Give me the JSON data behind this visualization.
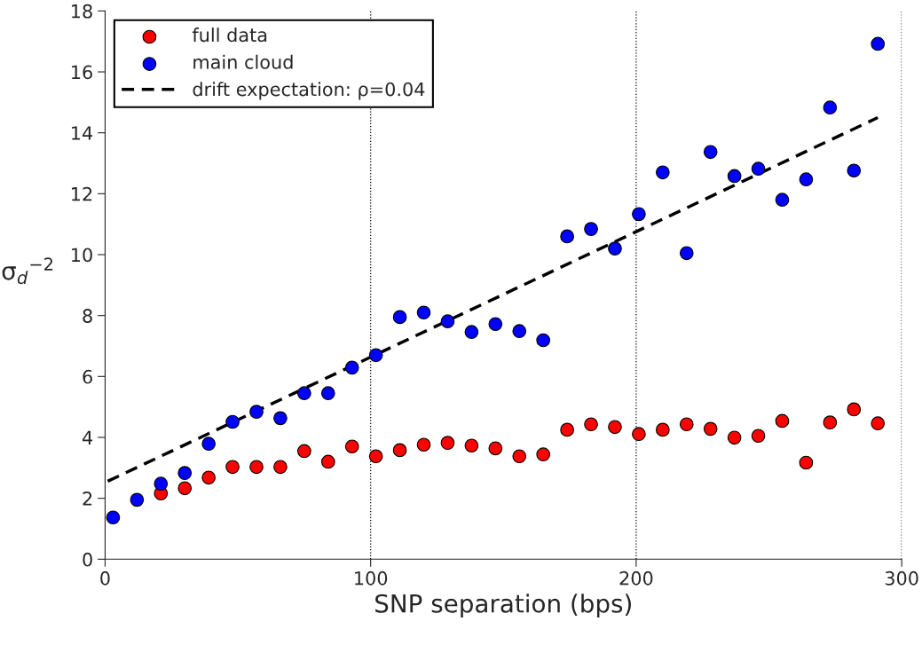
{
  "chart_data": {
    "type": "scatter",
    "xlabel": "SNP separation (bps)",
    "ylabel": "σ$_{d}$$^{−2}$",
    "xlim": [
      0,
      300
    ],
    "xticks": [
      0,
      100,
      200,
      300
    ],
    "ylim": [
      0,
      18
    ],
    "yticks": [
      0,
      2,
      4,
      6,
      8,
      10,
      12,
      14,
      16,
      18
    ],
    "grid": "x",
    "legend": "top left",
    "marker": "circle",
    "series": [
      {
        "name": "full data",
        "color": "#ff0000",
        "x": [
          21,
          30,
          39,
          48,
          57,
          66,
          75,
          84,
          93,
          102,
          111,
          120,
          129,
          138,
          147,
          156,
          165,
          174,
          183,
          192,
          201,
          210,
          219,
          228,
          237,
          246,
          255,
          264,
          273,
          282,
          291
        ],
        "values": [
          2.16,
          2.33,
          2.68,
          3.03,
          3.03,
          3.03,
          3.55,
          3.2,
          3.7,
          3.38,
          3.58,
          3.76,
          3.82,
          3.73,
          3.64,
          3.38,
          3.44,
          4.25,
          4.43,
          4.34,
          4.11,
          4.25,
          4.43,
          4.28,
          3.99,
          4.05,
          4.54,
          3.17,
          4.49,
          4.92,
          4.46
        ]
      },
      {
        "name": "main cloud",
        "color": "#0000ff",
        "x": [
          3,
          12,
          21,
          30,
          39,
          48,
          57,
          66,
          75,
          84,
          93,
          102,
          111,
          120,
          129,
          138,
          147,
          156,
          165,
          174,
          183,
          192,
          201,
          210,
          219,
          228,
          237,
          246,
          255,
          264,
          273,
          282,
          291
        ],
        "values": [
          1.37,
          1.95,
          2.48,
          2.83,
          3.79,
          4.51,
          4.84,
          4.63,
          5.45,
          5.45,
          6.29,
          6.7,
          7.95,
          8.1,
          7.81,
          7.46,
          7.72,
          7.49,
          7.19,
          10.6,
          10.84,
          10.2,
          11.33,
          12.7,
          10.05,
          13.37,
          12.58,
          12.82,
          11.8,
          12.47,
          14.83,
          12.76,
          16.92
        ]
      },
      {
        "name": "drift expectation: ρ=0.04",
        "type": "line",
        "color": "#000000",
        "line_style": "dashed",
        "marker": "none",
        "x": [
          1,
          291
        ],
        "values": [
          2.56,
          14.5
        ]
      }
    ]
  }
}
